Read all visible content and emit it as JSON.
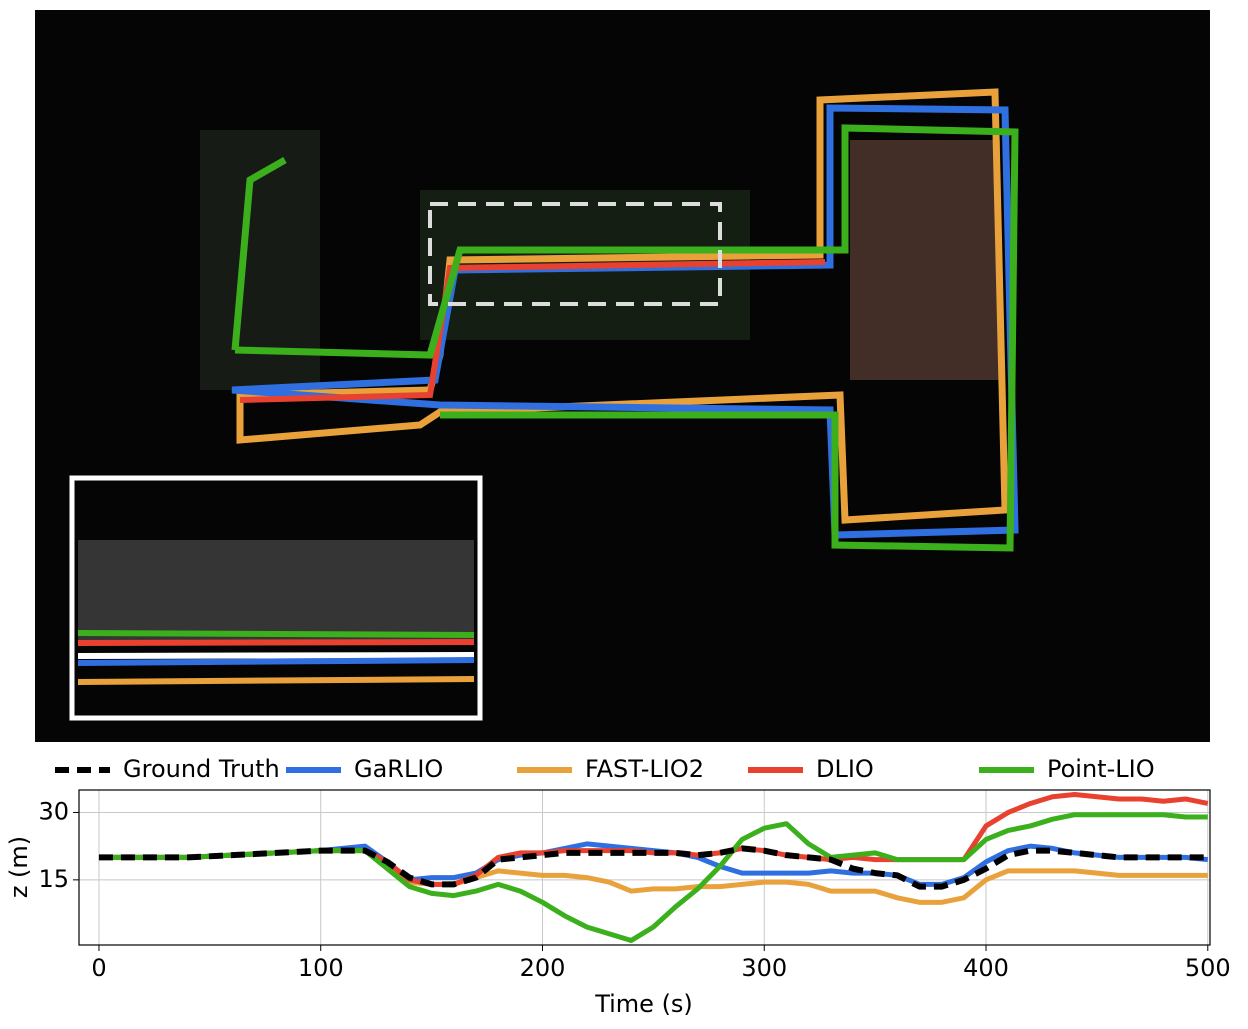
{
  "chart_data": {
    "type": "line",
    "xlabel": "Time (s)",
    "ylabel": "z (m)",
    "x": [
      0,
      20,
      40,
      60,
      80,
      100,
      110,
      120,
      130,
      140,
      150,
      160,
      170,
      180,
      190,
      200,
      210,
      220,
      230,
      240,
      250,
      260,
      270,
      280,
      290,
      300,
      310,
      320,
      330,
      340,
      350,
      360,
      370,
      380,
      390,
      400,
      410,
      420,
      430,
      440,
      450,
      460,
      470,
      480,
      490,
      500
    ],
    "series": [
      {
        "name": "GaRLIO",
        "color": "#2f6fe0",
        "values": [
          20,
          20,
          20,
          20.5,
          21,
          21.5,
          22,
          22.5,
          19,
          15,
          15.5,
          15.5,
          16.5,
          19.5,
          20.5,
          21,
          22,
          23,
          22.5,
          22,
          21.5,
          21,
          20,
          18,
          16.5,
          16.5,
          16.5,
          16.5,
          17,
          16.5,
          16.5,
          16,
          14,
          14,
          15.5,
          19,
          21.5,
          22.5,
          22,
          21,
          20.5,
          20,
          20,
          20,
          20,
          19.5
        ]
      },
      {
        "name": "FAST-LIO2",
        "color": "#e9a23b",
        "values": [
          20,
          20,
          20,
          20.5,
          21,
          21.5,
          21.5,
          21.5,
          18,
          14.5,
          14,
          14,
          15.5,
          17,
          16.5,
          16,
          16,
          15.5,
          14.5,
          12.5,
          13,
          13,
          13.5,
          13.5,
          14,
          14.5,
          14.5,
          14,
          12.5,
          12.5,
          12.5,
          11,
          10,
          10,
          11,
          15,
          17,
          17,
          17,
          17,
          16.5,
          16,
          16,
          16,
          16,
          16
        ]
      },
      {
        "name": "DLIO",
        "color": "#e8412f",
        "values": [
          20,
          20,
          20,
          20.5,
          21,
          21.5,
          21.5,
          21.5,
          19,
          15,
          14,
          14,
          16,
          20,
          21,
          21,
          21.5,
          21.5,
          21.5,
          21.5,
          21,
          21,
          20.5,
          21,
          22,
          21.5,
          20.5,
          20,
          19.5,
          20,
          19.5,
          19.5,
          19.5,
          19.5,
          19.5,
          27,
          30,
          32,
          33.5,
          34,
          33.5,
          33,
          33,
          32.5,
          33,
          32
        ]
      },
      {
        "name": "Point-LIO",
        "color": "#3bb01c",
        "values": [
          20,
          20,
          20,
          20.5,
          21,
          21.5,
          21.5,
          21.5,
          17.5,
          13.5,
          12,
          11.5,
          12.5,
          14,
          12.5,
          10,
          7,
          4.5,
          3,
          1.5,
          4.5,
          9,
          13,
          18,
          24,
          26.5,
          27.5,
          23,
          20,
          20.5,
          21,
          19.5,
          19.5,
          19.5,
          19.5,
          24,
          26,
          27,
          28.5,
          29.5,
          29.5,
          29.5,
          29.5,
          29.5,
          29,
          29
        ]
      },
      {
        "name": "Ground Truth",
        "color": "#000000",
        "dashed": true,
        "values": [
          20,
          20,
          20,
          20.5,
          21,
          21.5,
          21.5,
          21.5,
          19,
          15.5,
          14,
          14,
          15.5,
          19.5,
          20,
          20.5,
          21,
          21,
          21,
          21,
          21,
          21,
          20.5,
          21,
          22,
          21.5,
          20.5,
          20,
          19.5,
          17.5,
          16.5,
          16,
          13.5,
          13.5,
          15,
          17.5,
          20.5,
          21.5,
          21.5,
          21,
          20.5,
          20,
          20,
          20,
          20,
          20
        ]
      }
    ],
    "legend_order": [
      4,
      0,
      1,
      2,
      3
    ],
    "xlim": [
      -9,
      501
    ],
    "ylim": [
      0.5,
      35
    ],
    "xticks": [
      0,
      100,
      200,
      300,
      400,
      500
    ],
    "yticks": [
      15,
      30
    ],
    "grid": true
  }
}
